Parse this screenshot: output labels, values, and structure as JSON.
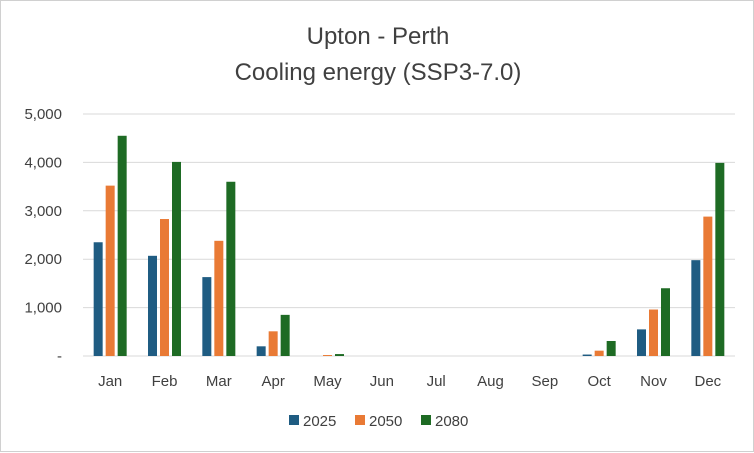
{
  "chart_data": {
    "type": "bar",
    "title": "Upton - Perth",
    "subtitle": "Cooling energy (SSP3-7.0)",
    "xlabel": "",
    "ylabel": "",
    "ylim": [
      0,
      5000
    ],
    "yticks": [
      0,
      1000,
      2000,
      3000,
      4000,
      5000
    ],
    "ytick_labels": [
      "-",
      "1,000",
      "2,000",
      "3,000",
      "4,000",
      "5,000"
    ],
    "grid": true,
    "legend_position": "bottom",
    "categories": [
      "Jan",
      "Feb",
      "Mar",
      "Apr",
      "May",
      "Jun",
      "Jul",
      "Aug",
      "Sep",
      "Oct",
      "Nov",
      "Dec"
    ],
    "series": [
      {
        "name": "2025",
        "color": "#1F5C82",
        "values": [
          2350,
          2070,
          1630,
          200,
          0,
          0,
          0,
          0,
          0,
          30,
          550,
          1980
        ]
      },
      {
        "name": "2050",
        "color": "#E97A35",
        "values": [
          3520,
          2830,
          2380,
          510,
          20,
          0,
          0,
          0,
          0,
          110,
          960,
          2880
        ]
      },
      {
        "name": "2080",
        "color": "#1E6B24",
        "values": [
          4550,
          4010,
          3600,
          850,
          40,
          0,
          0,
          0,
          0,
          310,
          1400,
          3990
        ]
      }
    ]
  }
}
